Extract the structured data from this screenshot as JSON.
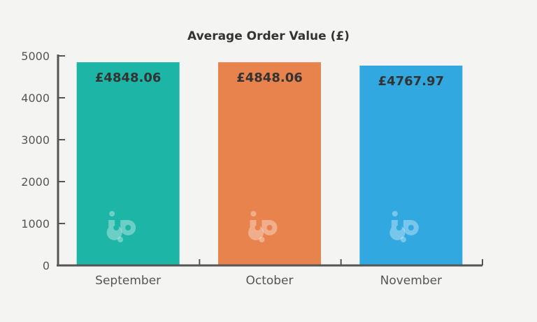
{
  "chart_data": {
    "type": "bar",
    "title": "Average Order Value (£)",
    "categories": [
      "September",
      "October",
      "November"
    ],
    "values": [
      4848.06,
      4848.06,
      4767.97
    ],
    "data_labels": [
      "£4848.06",
      "£4848.06",
      "£4767.97"
    ],
    "bar_colors": [
      "#1db5a6",
      "#e8834e",
      "#31a8e0"
    ],
    "ylim": [
      0,
      5000
    ],
    "yticks": [
      0,
      1000,
      2000,
      3000,
      4000,
      5000
    ],
    "xlabel": "",
    "ylabel": "",
    "grid": false,
    "legend": "none",
    "watermark_icon": "bp-logo-icon"
  }
}
